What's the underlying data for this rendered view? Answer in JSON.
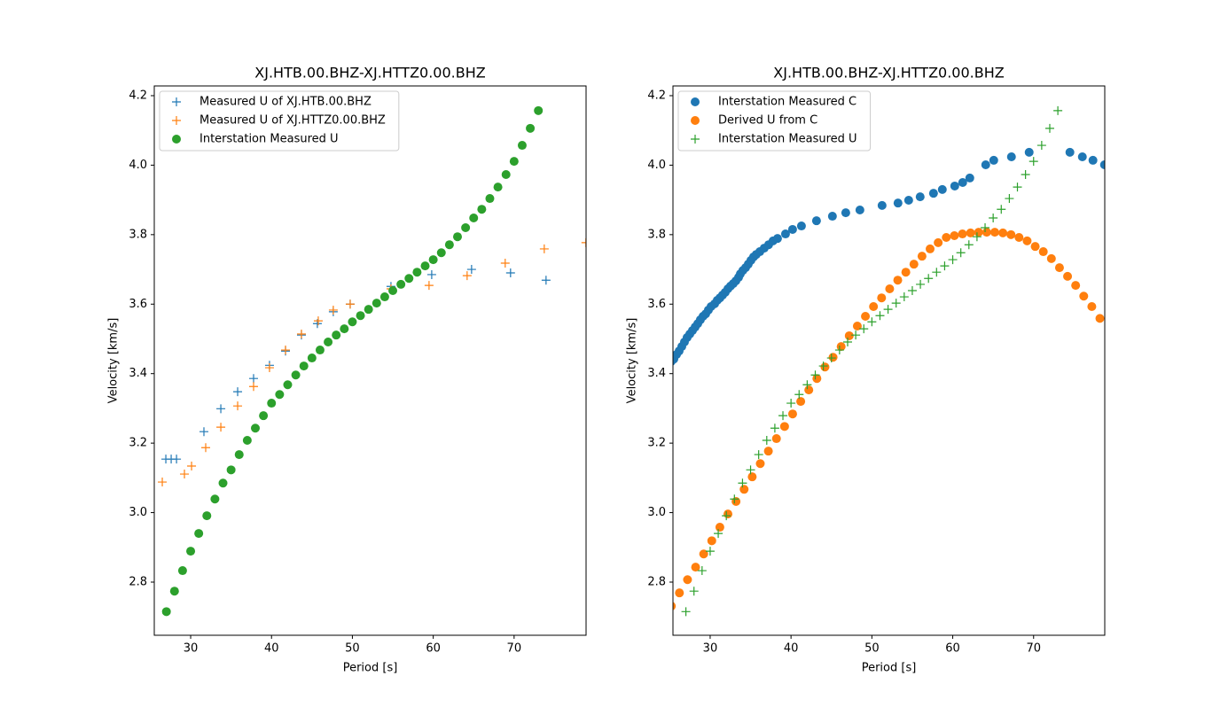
{
  "chart_data": [
    {
      "type": "scatter",
      "title": "XJ.HTB.00.BHZ-XJ.HTTZ0.00.BHZ",
      "xlabel": "Period [s]",
      "ylabel": "Velocity [km/s]",
      "xlim": [
        25.5,
        78.9
      ],
      "ylim": [
        2.647,
        4.228
      ],
      "xticks": [
        30,
        40,
        50,
        60,
        70
      ],
      "yticks": [
        2.8,
        {
          "value": 3,
          "label": "3.0"
        },
        3.2,
        3.4,
        3.6,
        3.8,
        {
          "value": 4,
          "label": "4.0"
        },
        4.2
      ],
      "legend": "upper left",
      "series": [
        {
          "name": "Measured U of XJ.HTB.00.BHZ",
          "color": "#1f77b4",
          "marker": "+",
          "x": [
            26.93,
            27.59,
            28.25,
            31.64,
            33.73,
            35.81,
            37.78,
            39.75,
            41.73,
            43.7,
            45.67,
            47.64,
            49.73,
            54.77,
            59.81,
            64.74,
            69.56,
            73.95
          ],
          "values": [
            3.154,
            3.154,
            3.154,
            3.233,
            3.299,
            3.348,
            3.386,
            3.424,
            3.465,
            3.511,
            3.544,
            3.578,
            3.6,
            3.651,
            3.685,
            3.7,
            3.69,
            3.669
          ]
        },
        {
          "name": "Measured U of XJ.HTTZ0.00.BHZ",
          "color": "#ff7f0e",
          "marker": "+",
          "x": [
            26.49,
            29.23,
            30.11,
            31.86,
            33.73,
            35.81,
            37.78,
            39.75,
            41.73,
            43.7,
            45.78,
            47.64,
            49.73,
            54.77,
            59.48,
            64.19,
            68.9,
            73.73,
            78.88
          ],
          "values": [
            3.088,
            3.111,
            3.134,
            3.187,
            3.246,
            3.307,
            3.363,
            3.417,
            3.468,
            3.514,
            3.552,
            3.583,
            3.6,
            3.644,
            3.654,
            3.682,
            3.718,
            3.759,
            3.777
          ]
        },
        {
          "name": "Interstation Measured U",
          "color": "#2ca02c",
          "marker": "o",
          "x": [
            27,
            28,
            29,
            30,
            31,
            32,
            33,
            34,
            35,
            36,
            37,
            38,
            39,
            40,
            41,
            42,
            43,
            44,
            45,
            46,
            47,
            48,
            49,
            50,
            51,
            52,
            53,
            54,
            55,
            56,
            57,
            58,
            59,
            60,
            61,
            62,
            63,
            64,
            65,
            66,
            67,
            68,
            69,
            70,
            71,
            72,
            73
          ],
          "values": [
            2.715,
            2.774,
            2.833,
            2.889,
            2.94,
            2.991,
            3.039,
            3.085,
            3.123,
            3.167,
            3.208,
            3.243,
            3.279,
            3.315,
            3.34,
            3.368,
            3.396,
            3.422,
            3.445,
            3.468,
            3.491,
            3.511,
            3.529,
            3.549,
            3.567,
            3.585,
            3.603,
            3.621,
            3.639,
            3.657,
            3.674,
            3.692,
            3.71,
            3.728,
            3.748,
            3.771,
            3.794,
            3.82,
            3.848,
            3.873,
            3.904,
            3.937,
            3.973,
            4.011,
            4.057,
            4.106,
            4.157
          ]
        }
      ]
    },
    {
      "type": "scatter",
      "title": "XJ.HTB.00.BHZ-XJ.HTTZ0.00.BHZ",
      "xlabel": "Period [s]",
      "ylabel": "Velocity [km/s]",
      "xlim": [
        25.4,
        78.8
      ],
      "ylim": [
        2.647,
        4.228
      ],
      "xticks": [
        30,
        40,
        50,
        60,
        70
      ],
      "yticks": [
        2.8,
        {
          "value": 3,
          "label": "3.0"
        },
        3.2,
        3.4,
        3.6,
        3.8,
        {
          "value": 4,
          "label": "4.0"
        },
        4.2
      ],
      "legend": "upper left",
      "series": [
        {
          "name": "Interstation Measured C",
          "color": "#1f77b4",
          "marker": "o",
          "x": [
            25.18,
            25.51,
            25.84,
            26.16,
            26.49,
            26.82,
            27.15,
            27.48,
            27.81,
            28.14,
            28.47,
            28.79,
            29.12,
            29.45,
            29.78,
            30.11,
            30.55,
            30.88,
            31.21,
            31.53,
            31.86,
            32.19,
            32.52,
            32.85,
            33.18,
            33.51,
            33.73,
            34.05,
            34.38,
            34.71,
            35.04,
            35.37,
            35.7,
            36.14,
            36.68,
            37.23,
            37.78,
            38.33,
            39.32,
            40.19,
            41.29,
            43.15,
            45.12,
            46.77,
            48.52,
            51.26,
            53.23,
            54.55,
            55.97,
            57.62,
            58.71,
            60.25,
            61.23,
            62.11,
            64.08,
            65.07,
            67.26,
            69.45,
            74.49,
            76.03,
            77.34,
            78.77
          ],
          "values": [
            3.435,
            3.442,
            3.455,
            3.465,
            3.478,
            3.491,
            3.504,
            3.514,
            3.524,
            3.534,
            3.544,
            3.555,
            3.565,
            3.572,
            3.583,
            3.593,
            3.601,
            3.611,
            3.618,
            3.626,
            3.634,
            3.644,
            3.652,
            3.659,
            3.667,
            3.677,
            3.687,
            3.697,
            3.705,
            3.715,
            3.726,
            3.736,
            3.743,
            3.751,
            3.761,
            3.771,
            3.782,
            3.789,
            3.802,
            3.815,
            3.825,
            3.84,
            3.853,
            3.863,
            3.871,
            3.884,
            3.891,
            3.899,
            3.909,
            3.919,
            3.93,
            3.94,
            3.95,
            3.963,
            4.001,
            4.014,
            4.024,
            4.037,
            4.037,
            4.024,
            4.014,
            4.001
          ]
        },
        {
          "name": "Derived U from C",
          "color": "#ff7f0e",
          "marker": "o",
          "x": [
            25.2,
            26.2,
            27.2,
            28.2,
            29.2,
            30.2,
            31.2,
            32.2,
            33.2,
            34.2,
            35.2,
            36.2,
            37.2,
            38.2,
            39.2,
            40.2,
            41.2,
            42.2,
            43.2,
            44.2,
            45.2,
            46.2,
            47.2,
            48.2,
            49.2,
            50.2,
            51.2,
            52.2,
            53.2,
            54.2,
            55.2,
            56.2,
            57.2,
            58.2,
            59.2,
            60.2,
            61.2,
            62.2,
            63.2,
            64.2,
            65.2,
            66.2,
            67.2,
            68.2,
            69.2,
            70.2,
            71.2,
            72.2,
            73.2,
            74.2,
            75.2,
            76.2,
            77.2,
            78.2
          ],
          "values": [
            2.731,
            2.769,
            2.807,
            2.843,
            2.881,
            2.919,
            2.958,
            2.996,
            3.032,
            3.067,
            3.103,
            3.141,
            3.177,
            3.213,
            3.248,
            3.284,
            3.32,
            3.353,
            3.386,
            3.419,
            3.447,
            3.478,
            3.509,
            3.537,
            3.565,
            3.593,
            3.618,
            3.644,
            3.669,
            3.692,
            3.715,
            3.738,
            3.759,
            3.777,
            3.792,
            3.797,
            3.802,
            3.805,
            3.807,
            3.807,
            3.807,
            3.805,
            3.8,
            3.792,
            3.782,
            3.766,
            3.751,
            3.731,
            3.705,
            3.68,
            3.654,
            3.623,
            3.593,
            3.559
          ]
        },
        {
          "name": "Interstation Measured U",
          "color": "#2ca02c",
          "marker": "+",
          "x": [
            27,
            28,
            29,
            30,
            31,
            32,
            33,
            34,
            35,
            36,
            37,
            38,
            39,
            40,
            41,
            42,
            43,
            44,
            45,
            46,
            47,
            48,
            49,
            50,
            51,
            52,
            53,
            54,
            55,
            56,
            57,
            58,
            59,
            60,
            61,
            62,
            63,
            64,
            65,
            66,
            67,
            68,
            69,
            70,
            71,
            72,
            73
          ],
          "values": [
            2.715,
            2.774,
            2.833,
            2.889,
            2.94,
            2.991,
            3.039,
            3.085,
            3.123,
            3.167,
            3.208,
            3.243,
            3.279,
            3.315,
            3.34,
            3.368,
            3.396,
            3.422,
            3.445,
            3.468,
            3.491,
            3.511,
            3.529,
            3.549,
            3.567,
            3.585,
            3.603,
            3.621,
            3.639,
            3.657,
            3.674,
            3.692,
            3.71,
            3.728,
            3.748,
            3.771,
            3.794,
            3.82,
            3.848,
            3.873,
            3.904,
            3.937,
            3.973,
            4.011,
            4.057,
            4.106,
            4.157
          ]
        }
      ]
    }
  ]
}
